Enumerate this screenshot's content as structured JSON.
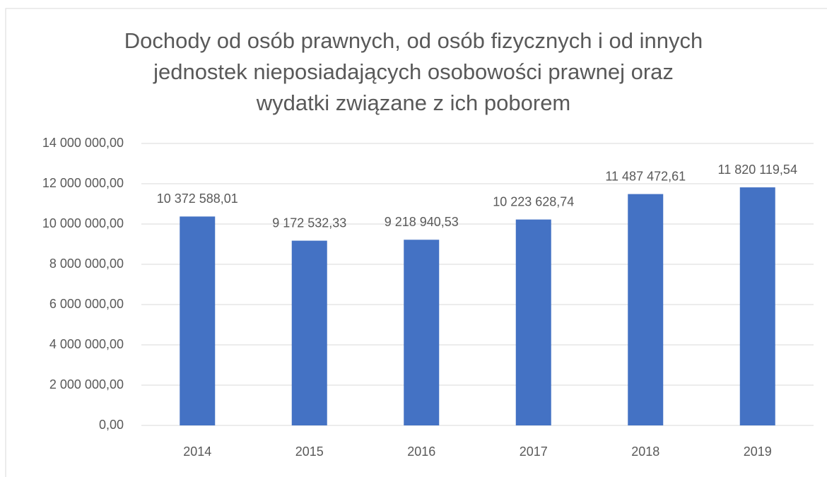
{
  "chart_data": {
    "type": "bar",
    "title": [
      "Dochody od osób prawnych, od osób fizycznych i od innych",
      "jednostek nieposiadających osobowości prawnej oraz",
      "wydatki związane z ich poborem"
    ],
    "categories": [
      "2014",
      "2015",
      "2016",
      "2017",
      "2018",
      "2019"
    ],
    "values": [
      10372588.01,
      9172532.33,
      9218940.53,
      10223628.74,
      11487472.61,
      11820119.54
    ],
    "value_labels": [
      "10 372 588,01",
      "9 172 532,33",
      "9 218 940,53",
      "10 223 628,74",
      "11 487 472,61",
      "11 820 119,54"
    ],
    "color": "#4472c4",
    "ylim": [
      0,
      14000000
    ],
    "yticks": [
      {
        "value": 0,
        "label": "0,00"
      },
      {
        "value": 2000000,
        "label": "2 000 000,00"
      },
      {
        "value": 4000000,
        "label": "4 000 000,00"
      },
      {
        "value": 6000000,
        "label": "6 000 000,00"
      },
      {
        "value": 8000000,
        "label": "8 000 000,00"
      },
      {
        "value": 10000000,
        "label": "10 000 000,00"
      },
      {
        "value": 12000000,
        "label": "12 000 000,00"
      },
      {
        "value": 14000000,
        "label": "14 000 000,00"
      }
    ],
    "grid": true
  }
}
